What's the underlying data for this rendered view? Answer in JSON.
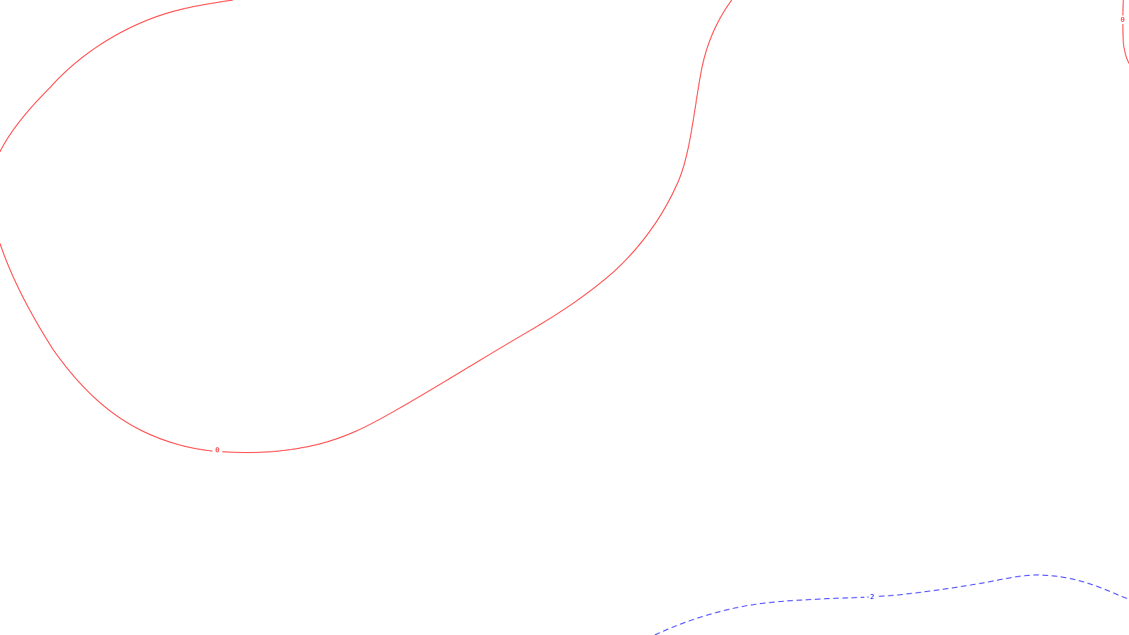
{
  "contours": [
    {
      "id": "zero-main",
      "level": "0",
      "color": "#ff0000",
      "style": "solid"
    },
    {
      "id": "zero-edge",
      "level": "0",
      "color": "#ff0000",
      "style": "solid"
    },
    {
      "id": "neg-two",
      "level": "-2",
      "color": "#0000ff",
      "style": "dashed"
    }
  ]
}
